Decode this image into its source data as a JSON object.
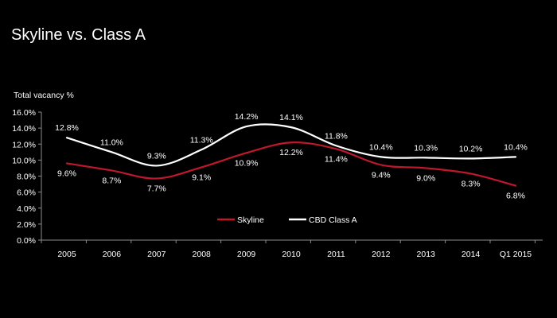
{
  "title": "Skyline vs. Class A",
  "chart_data": {
    "type": "line",
    "ylabel": "Total vacancy %",
    "ylim": [
      0,
      16
    ],
    "ytick_step": 2,
    "ytick_format": "percent_1dp",
    "categories": [
      "2005",
      "2006",
      "2007",
      "2008",
      "2009",
      "2010",
      "2011",
      "2012",
      "2013",
      "2014",
      "Q1 2015"
    ],
    "series": [
      {
        "name": "Skyline",
        "color": "#c0172d",
        "values": [
          9.6,
          8.7,
          7.7,
          9.1,
          10.9,
          12.2,
          11.4,
          9.4,
          9.0,
          8.3,
          6.8
        ],
        "labels": [
          "9.6%",
          "8.7%",
          "7.7%",
          "9.1%",
          "10.9%",
          "12.2%",
          "11.4%",
          "9.4%",
          "9.0%",
          "8.3%",
          "6.8%"
        ],
        "label_position": "below"
      },
      {
        "name": "CBD Class A",
        "color": "#ffffff",
        "values": [
          12.8,
          11.0,
          9.3,
          11.3,
          14.2,
          14.1,
          11.8,
          10.4,
          10.3,
          10.2,
          10.4
        ],
        "labels": [
          "12.8%",
          "11.0%",
          "9.3%",
          "11.3%",
          "14.2%",
          "14.1%",
          "11.8%",
          "10.4%",
          "10.3%",
          "10.2%",
          "10.4%"
        ],
        "label_position": "above"
      }
    ],
    "grid": false,
    "legend": "inside-bottom-center"
  }
}
